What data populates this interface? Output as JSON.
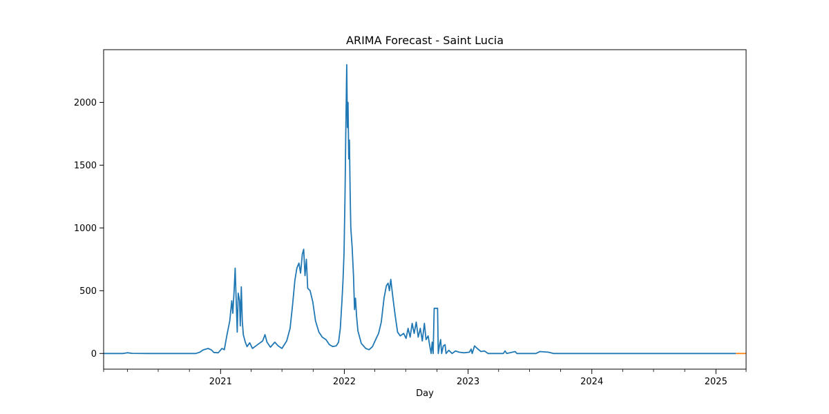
{
  "chart_data": {
    "type": "line",
    "title": "ARIMA Forecast - Saint Lucia",
    "xlabel": "Day",
    "ylabel": "",
    "xlim": [
      "2020-01-22",
      "2025-03-31"
    ],
    "ylim": [
      -125,
      2420
    ],
    "x_ticks": [
      "2021",
      "2022",
      "2023",
      "2024",
      "2025"
    ],
    "y_ticks": [
      0,
      500,
      1000,
      1500,
      2000
    ],
    "grid": false,
    "legend": "none",
    "series": [
      {
        "color": "#1f77b4",
        "points": [
          [
            "2020-01-22",
            0
          ],
          [
            "2020-03-20",
            0
          ],
          [
            "2020-04-01",
            6
          ],
          [
            "2020-04-15",
            1
          ],
          [
            "2020-06-01",
            0
          ],
          [
            "2020-10-20",
            0
          ],
          [
            "2020-11-01",
            10
          ],
          [
            "2020-11-10",
            28
          ],
          [
            "2020-11-25",
            40
          ],
          [
            "2020-12-05",
            28
          ],
          [
            "2020-12-12",
            8
          ],
          [
            "2020-12-25",
            5
          ],
          [
            "2021-01-05",
            40
          ],
          [
            "2021-01-12",
            30
          ],
          [
            "2021-01-20",
            150
          ],
          [
            "2021-01-28",
            260
          ],
          [
            "2021-02-03",
            420
          ],
          [
            "2021-02-06",
            320
          ],
          [
            "2021-02-10",
            500
          ],
          [
            "2021-02-13",
            680
          ],
          [
            "2021-02-16",
            420
          ],
          [
            "2021-02-19",
            170
          ],
          [
            "2021-02-22",
            480
          ],
          [
            "2021-02-26",
            420
          ],
          [
            "2021-02-28",
            220
          ],
          [
            "2021-03-03",
            530
          ],
          [
            "2021-03-06",
            260
          ],
          [
            "2021-03-09",
            150
          ],
          [
            "2021-03-15",
            90
          ],
          [
            "2021-03-20",
            55
          ],
          [
            "2021-03-28",
            85
          ],
          [
            "2021-04-05",
            40
          ],
          [
            "2021-04-15",
            60
          ],
          [
            "2021-04-25",
            80
          ],
          [
            "2021-05-05",
            100
          ],
          [
            "2021-05-12",
            150
          ],
          [
            "2021-05-18",
            90
          ],
          [
            "2021-05-28",
            50
          ],
          [
            "2021-06-10",
            90
          ],
          [
            "2021-06-20",
            60
          ],
          [
            "2021-07-01",
            40
          ],
          [
            "2021-07-15",
            100
          ],
          [
            "2021-07-25",
            200
          ],
          [
            "2021-08-01",
            380
          ],
          [
            "2021-08-08",
            580
          ],
          [
            "2021-08-14",
            680
          ],
          [
            "2021-08-20",
            720
          ],
          [
            "2021-08-25",
            640
          ],
          [
            "2021-08-30",
            790
          ],
          [
            "2021-09-03",
            830
          ],
          [
            "2021-09-07",
            620
          ],
          [
            "2021-09-11",
            750
          ],
          [
            "2021-09-15",
            520
          ],
          [
            "2021-09-22",
            500
          ],
          [
            "2021-09-30",
            410
          ],
          [
            "2021-10-08",
            260
          ],
          [
            "2021-10-18",
            170
          ],
          [
            "2021-10-28",
            130
          ],
          [
            "2021-11-08",
            110
          ],
          [
            "2021-11-18",
            70
          ],
          [
            "2021-11-28",
            55
          ],
          [
            "2021-12-08",
            60
          ],
          [
            "2021-12-15",
            90
          ],
          [
            "2021-12-20",
            200
          ],
          [
            "2021-12-25",
            420
          ],
          [
            "2021-12-28",
            580
          ],
          [
            "2021-12-31",
            800
          ],
          [
            "2022-01-03",
            1250
          ],
          [
            "2022-01-05",
            1700
          ],
          [
            "2022-01-08",
            2300
          ],
          [
            "2022-01-10",
            1800
          ],
          [
            "2022-01-12",
            2000
          ],
          [
            "2022-01-14",
            1550
          ],
          [
            "2022-01-16",
            1700
          ],
          [
            "2022-01-18",
            1300
          ],
          [
            "2022-01-20",
            1000
          ],
          [
            "2022-01-24",
            850
          ],
          [
            "2022-01-28",
            620
          ],
          [
            "2022-01-31",
            350
          ],
          [
            "2022-02-03",
            440
          ],
          [
            "2022-02-06",
            300
          ],
          [
            "2022-02-10",
            180
          ],
          [
            "2022-02-20",
            80
          ],
          [
            "2022-03-05",
            40
          ],
          [
            "2022-03-15",
            30
          ],
          [
            "2022-03-25",
            55
          ],
          [
            "2022-04-05",
            120
          ],
          [
            "2022-04-12",
            160
          ],
          [
            "2022-04-20",
            250
          ],
          [
            "2022-04-28",
            440
          ],
          [
            "2022-05-05",
            540
          ],
          [
            "2022-05-10",
            560
          ],
          [
            "2022-05-14",
            500
          ],
          [
            "2022-05-18",
            590
          ],
          [
            "2022-05-24",
            450
          ],
          [
            "2022-05-31",
            300
          ],
          [
            "2022-06-07",
            170
          ],
          [
            "2022-06-15",
            140
          ],
          [
            "2022-06-25",
            160
          ],
          [
            "2022-07-02",
            120
          ],
          [
            "2022-07-08",
            200
          ],
          [
            "2022-07-14",
            130
          ],
          [
            "2022-07-20",
            240
          ],
          [
            "2022-07-26",
            160
          ],
          [
            "2022-08-01",
            250
          ],
          [
            "2022-08-07",
            130
          ],
          [
            "2022-08-13",
            200
          ],
          [
            "2022-08-19",
            100
          ],
          [
            "2022-08-25",
            240
          ],
          [
            "2022-08-30",
            110
          ],
          [
            "2022-09-05",
            140
          ],
          [
            "2022-09-10",
            60
          ],
          [
            "2022-09-14",
            0
          ],
          [
            "2022-09-17",
            90
          ],
          [
            "2022-09-20",
            0
          ],
          [
            "2022-09-23",
            360
          ],
          [
            "2022-10-03",
            360
          ],
          [
            "2022-10-05",
            0
          ],
          [
            "2022-10-09",
            70
          ],
          [
            "2022-10-12",
            110
          ],
          [
            "2022-10-15",
            0
          ],
          [
            "2022-10-20",
            60
          ],
          [
            "2022-10-25",
            70
          ],
          [
            "2022-10-28",
            0
          ],
          [
            "2022-11-05",
            25
          ],
          [
            "2022-11-15",
            0
          ],
          [
            "2022-11-25",
            20
          ],
          [
            "2022-12-05",
            10
          ],
          [
            "2022-12-20",
            5
          ],
          [
            "2023-01-05",
            10
          ],
          [
            "2023-01-10",
            35
          ],
          [
            "2023-01-13",
            0
          ],
          [
            "2023-01-20",
            60
          ],
          [
            "2023-01-28",
            40
          ],
          [
            "2023-02-08",
            15
          ],
          [
            "2023-02-18",
            20
          ],
          [
            "2023-03-01",
            0
          ],
          [
            "2023-04-15",
            0
          ],
          [
            "2023-04-20",
            20
          ],
          [
            "2023-04-25",
            0
          ],
          [
            "2023-05-20",
            15
          ],
          [
            "2023-05-25",
            0
          ],
          [
            "2023-07-20",
            0
          ],
          [
            "2023-08-01",
            15
          ],
          [
            "2023-08-25",
            10
          ],
          [
            "2023-09-10",
            0
          ],
          [
            "2025-03-01",
            0
          ]
        ]
      },
      {
        "color": "#ff7f0e",
        "points": [
          [
            "2025-03-01",
            0
          ],
          [
            "2025-03-31",
            0
          ]
        ]
      }
    ]
  }
}
